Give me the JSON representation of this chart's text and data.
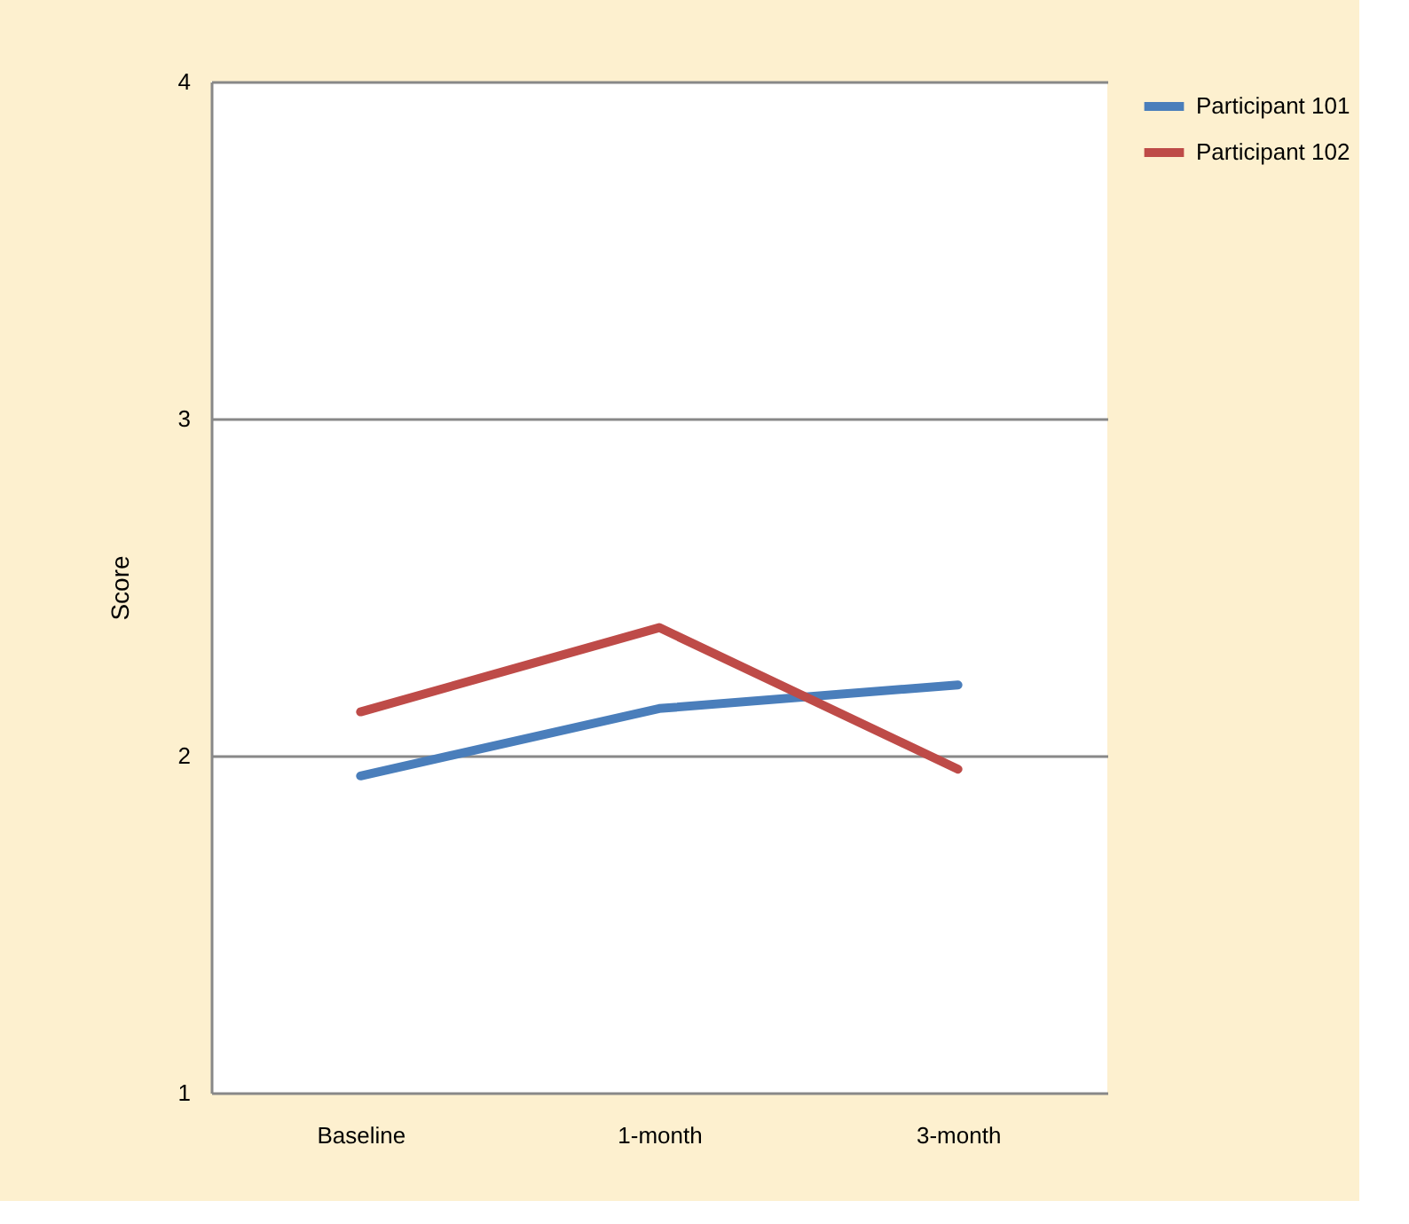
{
  "chart_data": {
    "type": "line",
    "ylabel": "Score",
    "categories": [
      "Baseline",
      "1-month",
      "3-month"
    ],
    "series": [
      {
        "name": "Participant 101",
        "color": "#4a7ebb",
        "values": [
          1.94,
          2.14,
          2.21
        ]
      },
      {
        "name": "Participant 102",
        "color": "#be4b48",
        "values": [
          2.13,
          2.38,
          1.96
        ]
      }
    ],
    "ylim": [
      1,
      4
    ],
    "yticks": [
      1,
      2,
      3,
      4
    ],
    "grid": "y",
    "legend": "right",
    "marker": "none",
    "line_style": "solid"
  }
}
